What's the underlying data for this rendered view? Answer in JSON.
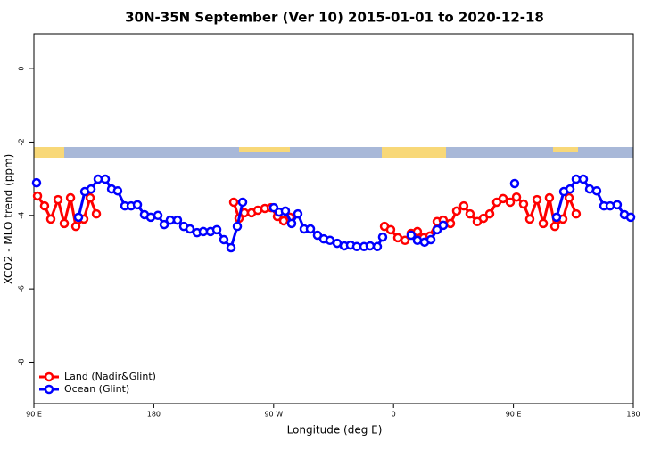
{
  "chart_data": {
    "type": "line",
    "title": "30N-35N September (Ver 10)   2015-01-01 to 2020-12-18",
    "xlabel": "Longitude (deg E)",
    "ylabel": "XCO2 - MLO trend (ppm)",
    "xlim": [
      90,
      540
    ],
    "xticks": [
      {
        "value": 90,
        "label": "90 E"
      },
      180,
      {
        "value": 270,
        "label": "90 W"
      },
      {
        "value": 360,
        "label": "0"
      },
      {
        "value": 450,
        "label": "90 E"
      },
      {
        "value": 540,
        "label": "180"
      }
    ],
    "ylim": [
      -9.13,
      0.95
    ],
    "yticks": [
      0,
      -2,
      -4,
      -6,
      -8
    ],
    "legend": "bottom-left",
    "series": [
      {
        "name": "Land (Nadir&Glint)",
        "color": "#ff0000",
        "x": [
          92.7,
          98.0,
          102.7,
          108.1,
          112.8,
          117.5,
          121.5,
          127.5,
          132.2,
          136.9,
          null,
          240.0,
          244.0,
          248.0,
          253.4,
          258.1,
          263.4,
          268.1,
          272.8,
          277.5,
          282.2,
          null,
          353.2,
          357.8,
          363.2,
          368.6,
          373.2,
          377.9,
          382.6,
          387.3,
          392.7,
          397.3,
          402.7,
          407.4,
          412.7,
          417.4,
          422.8,
          427.5,
          432.2,
          437.5,
          442.2,
          447.6,
          452.3,
          457.6,
          462.3,
          467.7,
          472.4,
          477.0,
          481.1,
          487.1,
          491.8,
          497.1
        ],
        "values": [
          -3.47,
          -3.74,
          -4.1,
          -3.57,
          -4.22,
          -3.52,
          -4.3,
          -4.1,
          -3.52,
          -3.96,
          null,
          -3.64,
          -4.08,
          -3.93,
          -3.93,
          -3.86,
          -3.81,
          -3.79,
          -4.03,
          -4.15,
          -4.05,
          null,
          -4.3,
          -4.39,
          -4.61,
          -4.68,
          -4.49,
          -4.44,
          -4.61,
          -4.56,
          -4.17,
          -4.13,
          -4.22,
          -3.88,
          -3.74,
          -3.96,
          -4.17,
          -4.08,
          -3.96,
          -3.64,
          -3.54,
          -3.64,
          -3.5,
          -3.69,
          -4.1,
          -3.57,
          -4.22,
          -3.52,
          -4.3,
          -4.1,
          -3.52,
          -3.96
        ]
      },
      {
        "name": "Ocean (Glint)",
        "color": "#0000ff",
        "x": [
          92.0,
          null,
          123.5,
          128.2,
          132.9,
          138.2,
          143.6,
          148.3,
          152.9,
          158.3,
          163.0,
          167.7,
          173.0,
          177.7,
          183.1,
          187.8,
          192.4,
          197.8,
          202.5,
          207.2,
          212.5,
          217.2,
          222.6,
          227.3,
          232.6,
          238.0,
          242.7,
          246.7,
          null,
          270.1,
          274.1,
          278.8,
          283.5,
          288.2,
          292.9,
          297.6,
          302.9,
          307.6,
          312.3,
          317.7,
          323.0,
          327.7,
          332.4,
          337.8,
          342.4,
          347.8,
          351.8,
          null,
          373.2,
          377.9,
          383.3,
          388.0,
          392.7,
          397.3,
          null,
          450.9,
          null,
          482.4,
          487.8,
          492.5,
          497.1,
          502.5,
          507.2,
          512.5,
          517.9,
          522.6,
          527.9,
          533.3,
          538.0
        ],
        "values": [
          -3.11,
          null,
          -4.05,
          -3.35,
          -3.28,
          -3.01,
          -3.01,
          -3.28,
          -3.33,
          -3.74,
          -3.74,
          -3.71,
          -3.98,
          -4.05,
          -4.0,
          -4.25,
          -4.13,
          -4.13,
          -4.3,
          -4.37,
          -4.47,
          -4.44,
          -4.44,
          -4.39,
          -4.66,
          -4.88,
          -4.3,
          -3.64,
          null,
          -3.79,
          -3.91,
          -3.88,
          -4.22,
          -3.96,
          -4.37,
          -4.37,
          -4.54,
          -4.64,
          -4.68,
          -4.76,
          -4.83,
          -4.81,
          -4.85,
          -4.85,
          -4.83,
          -4.85,
          -4.59,
          null,
          -4.54,
          -4.68,
          -4.73,
          -4.66,
          -4.39,
          -4.27,
          null,
          -3.13,
          null,
          -4.05,
          -3.35,
          -3.28,
          -3.01,
          -3.01,
          -3.28,
          -3.33,
          -3.74,
          -3.74,
          -3.71,
          -3.98,
          -4.05
        ]
      }
    ]
  }
}
